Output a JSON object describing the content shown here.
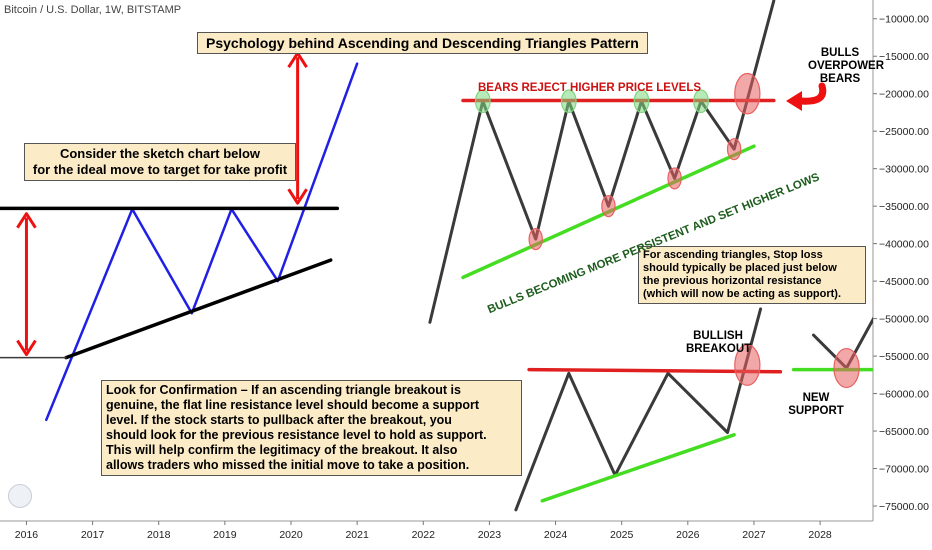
{
  "header": {
    "symbol_line": "Bitcoin / U.S. Dollar, 1W, BITSTAMP"
  },
  "title": "Psychology behind  Ascending and Descending Triangles Pattern",
  "notes": {
    "take_profit": "Consider the sketch chart below\nfor the ideal move to target for take profit",
    "confirmation": "Look for Confirmation – If an ascending triangle breakout is\ngenuine, the flat line resistance level should become a support\nlevel. If the stock starts to pullback after the breakout, you\nshould look for the previous resistance level to hold as support.\nThis will help confirm the legitimacy of the breakout. It also\nallows traders who missed the initial move to take a position.",
    "stop_loss": "For ascending triangles, Stop loss\nshould typically be placed just below\nthe previous horizontal resistance\n(which will now be acting as support)."
  },
  "labels": {
    "bears_reject": "BEARS REJECT HIGHER PRICE LEVELS",
    "bulls_persistent": "BULLS BECOMING MORE PERSISTENT AND SET HIGHER LOWS",
    "bulls_overpower": "BULLS\nOVERPOWER\nBEARS",
    "bullish_breakout": "BULLISH\nBREAKOUT",
    "new_support": "NEW\nSUPPORT"
  },
  "colors": {
    "blue_line": "#1f1fe6",
    "dark_line": "#3a3a3a",
    "resistance_red": "#e02020",
    "support_green": "#44dd22",
    "circle_red": "#e86060",
    "circle_green": "#7ed77e",
    "arrow_red": "#ee1111",
    "note_bg": "#fcebc7"
  },
  "chart_data": {
    "type": "line",
    "xlim": [
      2015.6,
      2028.8
    ],
    "ylim": [
      -77000,
      -7500
    ],
    "x_ticks": [
      2016,
      2017,
      2018,
      2019,
      2020,
      2021,
      2022,
      2023,
      2024,
      2025,
      2026,
      2027,
      2028
    ],
    "y_ticks": [
      -10000,
      -15000,
      -20000,
      -25000,
      -30000,
      -35000,
      -40000,
      -45000,
      -50000,
      -55000,
      -60000,
      -65000,
      -70000,
      -75000
    ],
    "series": [
      {
        "key": "sketch_price",
        "color_key": "blue_line",
        "width": 2.5,
        "points": [
          [
            2016.3,
            -63500
          ],
          [
            2017.6,
            -35400
          ],
          [
            2018.5,
            -49300
          ],
          [
            2019.1,
            -35400
          ],
          [
            2019.8,
            -45000
          ],
          [
            2021.0,
            -16000
          ]
        ]
      },
      {
        "key": "sketch_resistance",
        "color_key": "black",
        "width": 3.5,
        "points": [
          [
            2015.6,
            -35300
          ],
          [
            2020.7,
            -35300
          ]
        ]
      },
      {
        "key": "sketch_support",
        "color_key": "black",
        "width": 3.5,
        "points": [
          [
            2016.6,
            -55200
          ],
          [
            2020.6,
            -42200
          ]
        ]
      },
      {
        "key": "sketch_target",
        "color_key": "dark_line",
        "width": 1.5,
        "points": [
          [
            2019.9,
            -13800
          ],
          [
            2021.0,
            -13800
          ]
        ]
      },
      {
        "key": "sketch_base",
        "color_key": "dark_line",
        "width": 1.5,
        "points": [
          [
            2015.4,
            -55200
          ],
          [
            2016.6,
            -55200
          ]
        ]
      },
      {
        "key": "upper_price",
        "color_key": "dark_line",
        "width": 3,
        "points": [
          [
            2022.1,
            -50500
          ],
          [
            2022.9,
            -21000
          ],
          [
            2023.7,
            -39400
          ],
          [
            2024.2,
            -21000
          ],
          [
            2024.8,
            -35000
          ],
          [
            2025.3,
            -21000
          ],
          [
            2025.8,
            -31300
          ],
          [
            2026.2,
            -21000
          ],
          [
            2026.7,
            -27400
          ],
          [
            2027.3,
            -7600
          ]
        ]
      },
      {
        "key": "upper_resistance",
        "color_key": "resistance_red",
        "width": 3.5,
        "points": [
          [
            2022.6,
            -20900
          ],
          [
            2027.3,
            -20900
          ]
        ]
      },
      {
        "key": "upper_support",
        "color_key": "support_green",
        "width": 3.5,
        "points": [
          [
            2022.6,
            -44500
          ],
          [
            2027.0,
            -27000
          ]
        ]
      },
      {
        "key": "lower_price",
        "color_key": "dark_line",
        "width": 3,
        "points": [
          [
            2023.4,
            -75500
          ],
          [
            2024.2,
            -57300
          ],
          [
            2024.9,
            -70900
          ],
          [
            2025.7,
            -57300
          ],
          [
            2026.6,
            -65200
          ],
          [
            2027.1,
            -48700
          ]
        ]
      },
      {
        "key": "lower_resistance",
        "color_key": "resistance_red",
        "width": 3.5,
        "points": [
          [
            2023.6,
            -56800
          ],
          [
            2027.4,
            -57100
          ]
        ]
      },
      {
        "key": "lower_support",
        "color_key": "support_green",
        "width": 3.5,
        "points": [
          [
            2023.8,
            -74300
          ],
          [
            2026.7,
            -65500
          ]
        ]
      },
      {
        "key": "retest_path",
        "color_key": "dark_line",
        "width": 3,
        "points": [
          [
            2027.9,
            -52200
          ],
          [
            2028.4,
            -56600
          ],
          [
            2028.9,
            -48500
          ]
        ]
      },
      {
        "key": "retest_support",
        "color_key": "support_green",
        "width": 3.5,
        "points": [
          [
            2027.6,
            -56800
          ],
          [
            2029.2,
            -56800
          ]
        ]
      }
    ],
    "markers": [
      {
        "key": "peak_1",
        "x": 2022.9,
        "y": -21000,
        "color_key": "circle_green",
        "rx": 0.11,
        "ry": 1500
      },
      {
        "key": "peak_2",
        "x": 2024.2,
        "y": -21000,
        "color_key": "circle_green",
        "rx": 0.11,
        "ry": 1500
      },
      {
        "key": "peak_3",
        "x": 2025.3,
        "y": -21000,
        "color_key": "circle_green",
        "rx": 0.11,
        "ry": 1500
      },
      {
        "key": "peak_4",
        "x": 2026.2,
        "y": -21000,
        "color_key": "circle_green",
        "rx": 0.11,
        "ry": 1500
      },
      {
        "key": "low_1",
        "x": 2023.7,
        "y": -39400,
        "color_key": "circle_red",
        "rx": 0.1,
        "ry": 1400
      },
      {
        "key": "low_2",
        "x": 2024.8,
        "y": -35000,
        "color_key": "circle_red",
        "rx": 0.1,
        "ry": 1400
      },
      {
        "key": "low_3",
        "x": 2025.8,
        "y": -31300,
        "color_key": "circle_red",
        "rx": 0.1,
        "ry": 1400
      },
      {
        "key": "low_4",
        "x": 2026.7,
        "y": -27400,
        "color_key": "circle_red",
        "rx": 0.1,
        "ry": 1400
      },
      {
        "key": "upper_breakout",
        "x": 2026.9,
        "y": -20000,
        "color_key": "circle_red",
        "rx": 0.19,
        "ry": 2700
      },
      {
        "key": "lower_breakout",
        "x": 2026.9,
        "y": -56200,
        "color_key": "circle_red",
        "rx": 0.19,
        "ry": 2700
      },
      {
        "key": "retest_touch",
        "x": 2028.4,
        "y": -56600,
        "color_key": "circle_red",
        "rx": 0.19,
        "ry": 2600
      }
    ],
    "double_arrows": [
      {
        "key": "move_height",
        "x": 2016.0,
        "y1": -36000,
        "y2": -54800
      },
      {
        "key": "target_projection",
        "x": 2020.1,
        "y1": -14600,
        "y2": -34600
      }
    ]
  }
}
